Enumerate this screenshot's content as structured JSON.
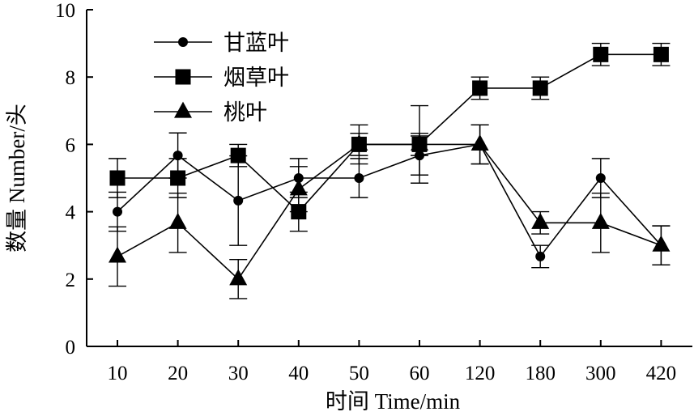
{
  "chart_data": {
    "type": "line",
    "title": "",
    "xlabel": "时间 Time/min",
    "ylabel": "数量 Number/头",
    "categories": [
      "10",
      "20",
      "30",
      "40",
      "50",
      "60",
      "120",
      "180",
      "300",
      "420"
    ],
    "yticks": [
      "0",
      "2",
      "4",
      "6",
      "8",
      "10"
    ],
    "ylim": [
      0,
      10
    ],
    "grid": false,
    "legend_position": "top-left",
    "series": [
      {
        "name": "甘蓝叶",
        "marker": "circle",
        "values": [
          4.0,
          5.67,
          4.33,
          5.0,
          5.0,
          5.67,
          6.0,
          2.67,
          5.0,
          3.0
        ],
        "errors": [
          0.58,
          0.67,
          1.33,
          0.58,
          0.58,
          0.58,
          0.58,
          0.33,
          0.58,
          0.58
        ]
      },
      {
        "name": "烟草叶",
        "marker": "square",
        "values": [
          5.0,
          5.0,
          5.67,
          4.0,
          6.0,
          6.0,
          7.67,
          7.67,
          8.67,
          8.67
        ],
        "errors": [
          0.58,
          0.58,
          0.33,
          0.58,
          0.58,
          1.15,
          0.33,
          0.33,
          0.33,
          0.33
        ]
      },
      {
        "name": "桃叶",
        "marker": "triangle",
        "values": [
          2.67,
          3.67,
          2.0,
          4.67,
          6.0,
          6.0,
          6.0,
          3.67,
          3.67,
          3.0
        ],
        "errors": [
          0.88,
          0.88,
          0.58,
          0.67,
          0.33,
          0.33,
          0.58,
          0.33,
          0.88,
          0.58
        ]
      }
    ],
    "colors": {
      "line": "#000000",
      "marker": "#000000"
    }
  }
}
